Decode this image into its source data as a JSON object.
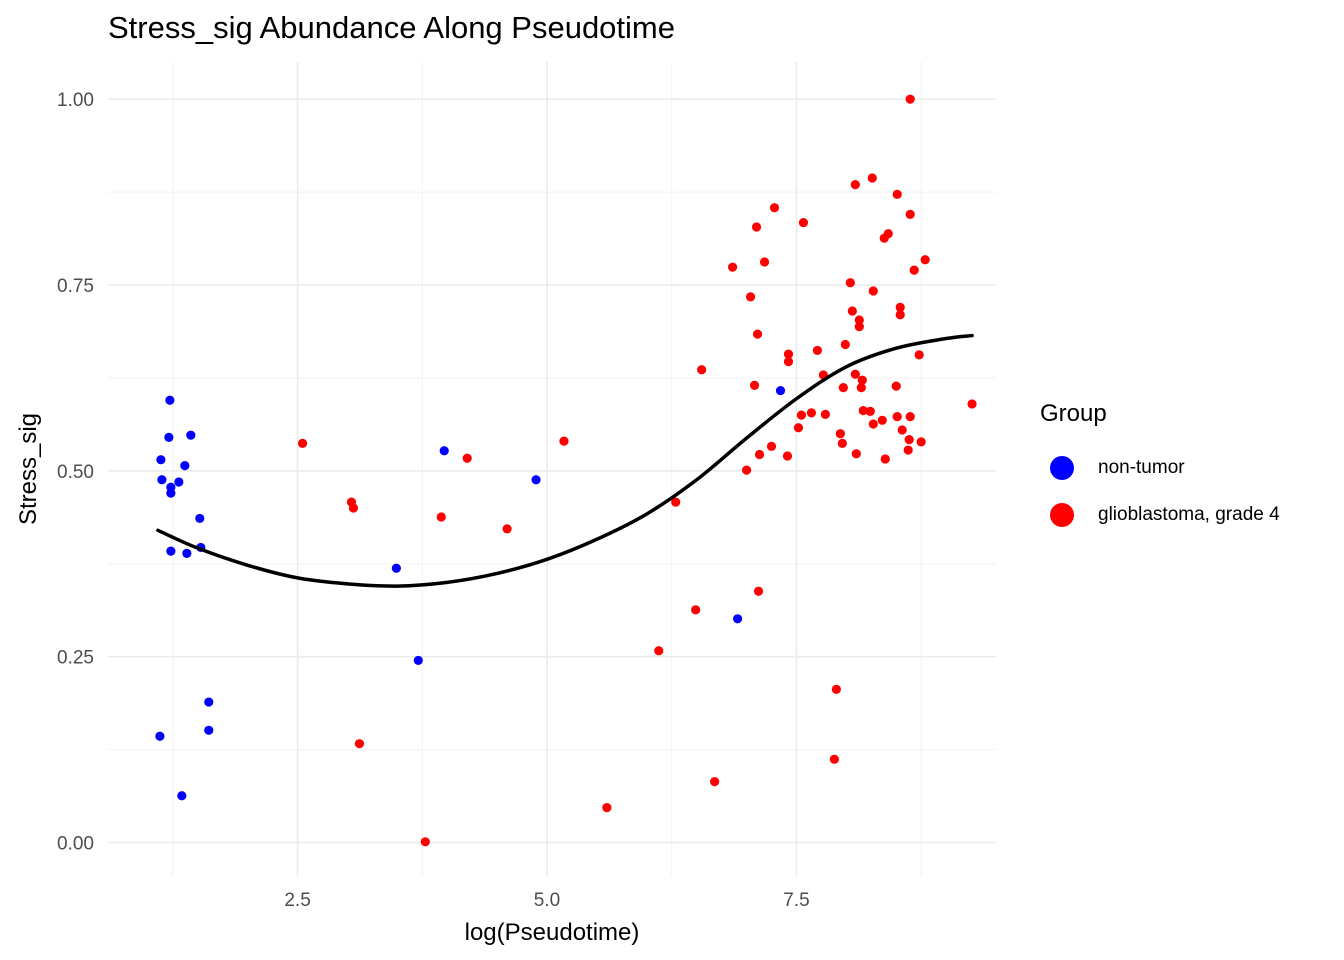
{
  "chart_data": {
    "type": "scatter",
    "title": "Stress_sig Abundance Along Pseudotime",
    "xlabel": "log(Pseudotime)",
    "ylabel": "Stress_sig",
    "xlim": [
      0.6,
      9.5
    ],
    "ylim": [
      -0.045,
      1.05
    ],
    "x_ticks": [
      2.5,
      5.0,
      7.5
    ],
    "x_tick_labels": [
      "2.5",
      "5.0",
      "7.5"
    ],
    "y_ticks": [
      0.0,
      0.25,
      0.5,
      0.75,
      1.0
    ],
    "y_tick_labels": [
      "0.00",
      "0.25",
      "0.50",
      "0.75",
      "1.00"
    ],
    "grid": true,
    "legend": {
      "title": "Group",
      "position": "right"
    },
    "series": [
      {
        "name": "non-tumor",
        "color": "#0000ff",
        "points": [
          [
            1.12,
            0.143
          ],
          [
            1.13,
            0.515
          ],
          [
            1.14,
            0.488
          ],
          [
            1.22,
            0.595
          ],
          [
            1.21,
            0.545
          ],
          [
            1.23,
            0.478
          ],
          [
            1.23,
            0.47
          ],
          [
            1.23,
            0.392
          ],
          [
            1.31,
            0.485
          ],
          [
            1.34,
            0.063
          ],
          [
            1.37,
            0.507
          ],
          [
            1.39,
            0.389
          ],
          [
            1.43,
            0.548
          ],
          [
            1.52,
            0.436
          ],
          [
            1.53,
            0.397
          ],
          [
            1.61,
            0.189
          ],
          [
            1.61,
            0.151
          ],
          [
            3.49,
            0.369
          ],
          [
            3.71,
            0.245
          ],
          [
            3.97,
            0.527
          ],
          [
            4.89,
            0.488
          ],
          [
            6.91,
            0.301
          ],
          [
            7.34,
            0.608
          ]
        ]
      },
      {
        "name": "glioblastoma, grade 4",
        "color": "#ff0000",
        "points": [
          [
            2.55,
            0.537
          ],
          [
            3.04,
            0.458
          ],
          [
            3.06,
            0.45
          ],
          [
            3.12,
            0.133
          ],
          [
            3.78,
            0.001
          ],
          [
            3.94,
            0.438
          ],
          [
            4.2,
            0.517
          ],
          [
            4.6,
            0.422
          ],
          [
            5.17,
            0.54
          ],
          [
            5.6,
            0.047
          ],
          [
            6.12,
            0.258
          ],
          [
            6.29,
            0.458
          ],
          [
            6.49,
            0.313
          ],
          [
            6.55,
            0.636
          ],
          [
            6.68,
            0.082
          ],
          [
            6.86,
            0.774
          ],
          [
            7.0,
            0.501
          ],
          [
            7.04,
            0.734
          ],
          [
            7.08,
            0.615
          ],
          [
            7.1,
            0.828
          ],
          [
            7.11,
            0.684
          ],
          [
            7.12,
            0.338
          ],
          [
            7.13,
            0.522
          ],
          [
            7.18,
            0.781
          ],
          [
            7.25,
            0.533
          ],
          [
            7.28,
            0.854
          ],
          [
            7.41,
            0.52
          ],
          [
            7.42,
            0.647
          ],
          [
            7.42,
            0.657
          ],
          [
            7.52,
            0.558
          ],
          [
            7.55,
            0.575
          ],
          [
            7.57,
            0.834
          ],
          [
            7.65,
            0.578
          ],
          [
            7.71,
            0.662
          ],
          [
            7.77,
            0.629
          ],
          [
            7.79,
            0.576
          ],
          [
            7.88,
            0.112
          ],
          [
            7.9,
            0.206
          ],
          [
            7.94,
            0.55
          ],
          [
            7.96,
            0.537
          ],
          [
            7.97,
            0.612
          ],
          [
            7.99,
            0.67
          ],
          [
            8.04,
            0.753
          ],
          [
            8.06,
            0.715
          ],
          [
            8.09,
            0.63
          ],
          [
            8.09,
            0.885
          ],
          [
            8.1,
            0.523
          ],
          [
            8.13,
            0.703
          ],
          [
            8.13,
            0.694
          ],
          [
            8.15,
            0.612
          ],
          [
            8.16,
            0.622
          ],
          [
            8.17,
            0.581
          ],
          [
            8.24,
            0.58
          ],
          [
            8.26,
            0.894
          ],
          [
            8.27,
            0.563
          ],
          [
            8.27,
            0.742
          ],
          [
            8.36,
            0.568
          ],
          [
            8.38,
            0.813
          ],
          [
            8.39,
            0.516
          ],
          [
            8.42,
            0.819
          ],
          [
            8.5,
            0.614
          ],
          [
            8.51,
            0.573
          ],
          [
            8.51,
            0.872
          ],
          [
            8.54,
            0.71
          ],
          [
            8.54,
            0.72
          ],
          [
            8.56,
            0.555
          ],
          [
            8.62,
            0.528
          ],
          [
            8.63,
            0.542
          ],
          [
            8.64,
            0.573
          ],
          [
            8.64,
            0.845
          ],
          [
            8.64,
            1.0
          ],
          [
            8.68,
            0.77
          ],
          [
            8.73,
            0.656
          ],
          [
            8.75,
            0.539
          ],
          [
            8.79,
            0.784
          ],
          [
            9.26,
            0.59
          ]
        ]
      }
    ],
    "trend": {
      "name": "smooth",
      "color": "#000000",
      "points": [
        [
          1.1,
          0.42
        ],
        [
          1.5,
          0.396
        ],
        [
          2.0,
          0.373
        ],
        [
          2.5,
          0.356
        ],
        [
          3.0,
          0.348
        ],
        [
          3.5,
          0.345
        ],
        [
          4.0,
          0.35
        ],
        [
          4.5,
          0.362
        ],
        [
          5.0,
          0.381
        ],
        [
          5.5,
          0.408
        ],
        [
          6.0,
          0.442
        ],
        [
          6.5,
          0.488
        ],
        [
          7.0,
          0.544
        ],
        [
          7.5,
          0.597
        ],
        [
          8.0,
          0.64
        ],
        [
          8.5,
          0.665
        ],
        [
          9.0,
          0.678
        ],
        [
          9.26,
          0.682
        ]
      ]
    }
  }
}
